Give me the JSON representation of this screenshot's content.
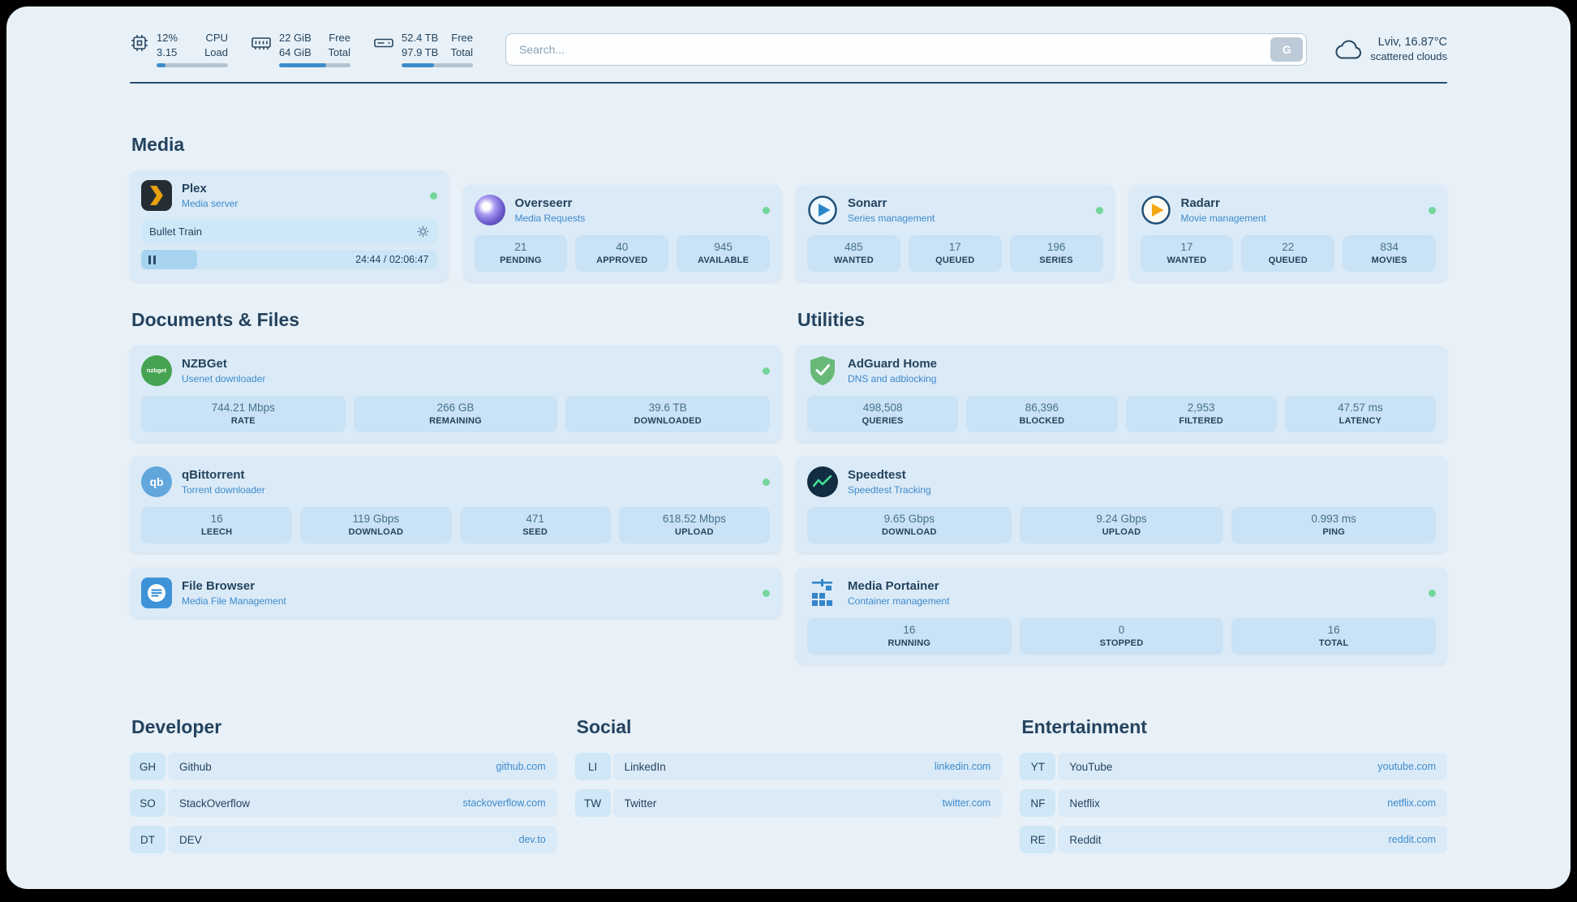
{
  "colors": {
    "page_bg": "#e8f1f8",
    "card_bg": "#dbeaf7",
    "stat_bg": "#c9e2f5",
    "accent_blue": "#3d8bcb",
    "text_dark": "#24435e",
    "status_online": "#74d69c"
  },
  "topbar": {
    "cpu": {
      "value1": "12%",
      "label1": "CPU",
      "value2": "3.15",
      "label2": "Load",
      "bar_percent": 13
    },
    "memory": {
      "value1": "22 GiB",
      "label1": "Free",
      "value2": "64 GiB",
      "label2": "Total",
      "bar_percent": 66
    },
    "disk": {
      "value1": "52.4 TB",
      "label1": "Free",
      "value2": "97.9 TB",
      "label2": "Total",
      "bar_percent": 46
    },
    "search": {
      "placeholder": "Search...",
      "provider_label": "G"
    },
    "weather": {
      "location": "Lviv, 16.87°C",
      "condition": "scattered clouds"
    }
  },
  "media": {
    "heading": "Media",
    "plex": {
      "title": "Plex",
      "subtitle": "Media server",
      "status": "online",
      "media_item": {
        "title": "Bullet Train",
        "time": "24:44 / 02:06:47",
        "progress_percent": 19
      }
    },
    "overseerr": {
      "title": "Overseerr",
      "subtitle": "Media Requests",
      "status": "online",
      "stats": [
        {
          "value": "21",
          "label": "PENDING"
        },
        {
          "value": "40",
          "label": "APPROVED"
        },
        {
          "value": "945",
          "label": "AVAILABLE"
        }
      ]
    },
    "sonarr": {
      "title": "Sonarr",
      "subtitle": "Series management",
      "status": "online",
      "stats": [
        {
          "value": "485",
          "label": "WANTED"
        },
        {
          "value": "17",
          "label": "QUEUED"
        },
        {
          "value": "196",
          "label": "SERIES"
        }
      ]
    },
    "radarr": {
      "title": "Radarr",
      "subtitle": "Movie management",
      "status": "online",
      "stats": [
        {
          "value": "17",
          "label": "WANTED"
        },
        {
          "value": "22",
          "label": "QUEUED"
        },
        {
          "value": "834",
          "label": "MOVIES"
        }
      ]
    }
  },
  "documents": {
    "heading": "Documents & Files",
    "nzbget": {
      "title": "NZBGet",
      "subtitle": "Usenet downloader",
      "status": "online",
      "icon_text": "nzbget",
      "stats": [
        {
          "value": "744.21 Mbps",
          "label": "RATE"
        },
        {
          "value": "266 GB",
          "label": "REMAINING"
        },
        {
          "value": "39.6 TB",
          "label": "DOWNLOADED"
        }
      ]
    },
    "qbittorrent": {
      "title": "qBittorrent",
      "subtitle": "Torrent downloader",
      "status": "online",
      "icon_text": "qb",
      "stats": [
        {
          "value": "16",
          "label": "LEECH"
        },
        {
          "value": "119 Gbps",
          "label": "DOWNLOAD"
        },
        {
          "value": "471",
          "label": "SEED"
        },
        {
          "value": "618.52 Mbps",
          "label": "UPLOAD"
        }
      ]
    },
    "filebrowser": {
      "title": "File Browser",
      "subtitle": "Media File Management",
      "status": "online"
    }
  },
  "utilities": {
    "heading": "Utilities",
    "adguard": {
      "title": "AdGuard Home",
      "subtitle": "DNS and adblocking",
      "stats": [
        {
          "value": "498,508",
          "label": "QUERIES"
        },
        {
          "value": "86,396",
          "label": "BLOCKED"
        },
        {
          "value": "2,953",
          "label": "FILTERED"
        },
        {
          "value": "47.57 ms",
          "label": "LATENCY"
        }
      ]
    },
    "speedtest": {
      "title": "Speedtest",
      "subtitle": "Speedtest Tracking",
      "stats": [
        {
          "value": "9.65 Gbps",
          "label": "DOWNLOAD"
        },
        {
          "value": "9.24 Gbps",
          "label": "UPLOAD"
        },
        {
          "value": "0.993 ms",
          "label": "PING"
        }
      ]
    },
    "portainer": {
      "title": "Media Portainer",
      "subtitle": "Container management",
      "status": "online",
      "stats": [
        {
          "value": "16",
          "label": "RUNNING"
        },
        {
          "value": "0",
          "label": "STOPPED"
        },
        {
          "value": "16",
          "label": "TOTAL"
        }
      ]
    }
  },
  "bookmarks": {
    "developer": {
      "heading": "Developer",
      "items": [
        {
          "abbr": "GH",
          "name": "Github",
          "url": "github.com"
        },
        {
          "abbr": "SO",
          "name": "StackOverflow",
          "url": "stackoverflow.com"
        },
        {
          "abbr": "DT",
          "name": "DEV",
          "url": "dev.to"
        }
      ]
    },
    "social": {
      "heading": "Social",
      "items": [
        {
          "abbr": "LI",
          "name": "LinkedIn",
          "url": "linkedin.com"
        },
        {
          "abbr": "TW",
          "name": "Twitter",
          "url": "twitter.com"
        }
      ]
    },
    "entertainment": {
      "heading": "Entertainment",
      "items": [
        {
          "abbr": "YT",
          "name": "YouTube",
          "url": "youtube.com"
        },
        {
          "abbr": "NF",
          "name": "Netflix",
          "url": "netflix.com"
        },
        {
          "abbr": "RE",
          "name": "Reddit",
          "url": "reddit.com"
        }
      ]
    }
  }
}
